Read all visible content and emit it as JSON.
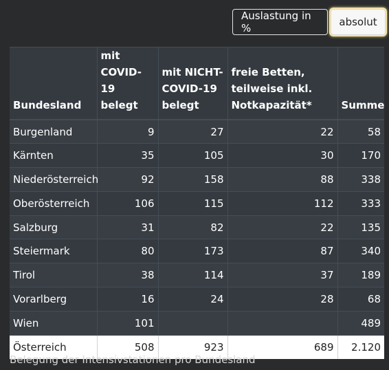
{
  "toolbar": {
    "buttons": [
      {
        "label": "Auslastung in %",
        "active": false
      },
      {
        "label": "absolut",
        "active": true
      }
    ]
  },
  "table": {
    "headers": [
      "Bundesland",
      "mit COVID-19 belegt",
      "mit NICHT-COVID-19 belegt",
      "freie Betten, teilweise inkl. Notkapazität*",
      "Summe"
    ],
    "rows": [
      [
        "Burgenland",
        "9",
        "27",
        "22",
        "58"
      ],
      [
        "Kärnten",
        "35",
        "105",
        "30",
        "170"
      ],
      [
        "Niederösterreich",
        "92",
        "158",
        "88",
        "338"
      ],
      [
        "Oberösterreich",
        "106",
        "115",
        "112",
        "333"
      ],
      [
        "Salzburg",
        "31",
        "82",
        "22",
        "135"
      ],
      [
        "Steiermark",
        "80",
        "173",
        "87",
        "340"
      ],
      [
        "Tirol",
        "38",
        "114",
        "37",
        "189"
      ],
      [
        "Vorarlberg",
        "16",
        "24",
        "28",
        "68"
      ],
      [
        "Wien",
        "101",
        "",
        "",
        "489"
      ]
    ],
    "total": [
      "Österreich",
      "508",
      "923",
      "689",
      "2.120"
    ]
  },
  "caption": "Belegung der Intensivstationen pro Bundesland",
  "colors": {
    "background": "#2a2b2d",
    "header_bg": "#343a40",
    "row_alt": "#393e44",
    "total_row_bg": "#ffffff"
  }
}
